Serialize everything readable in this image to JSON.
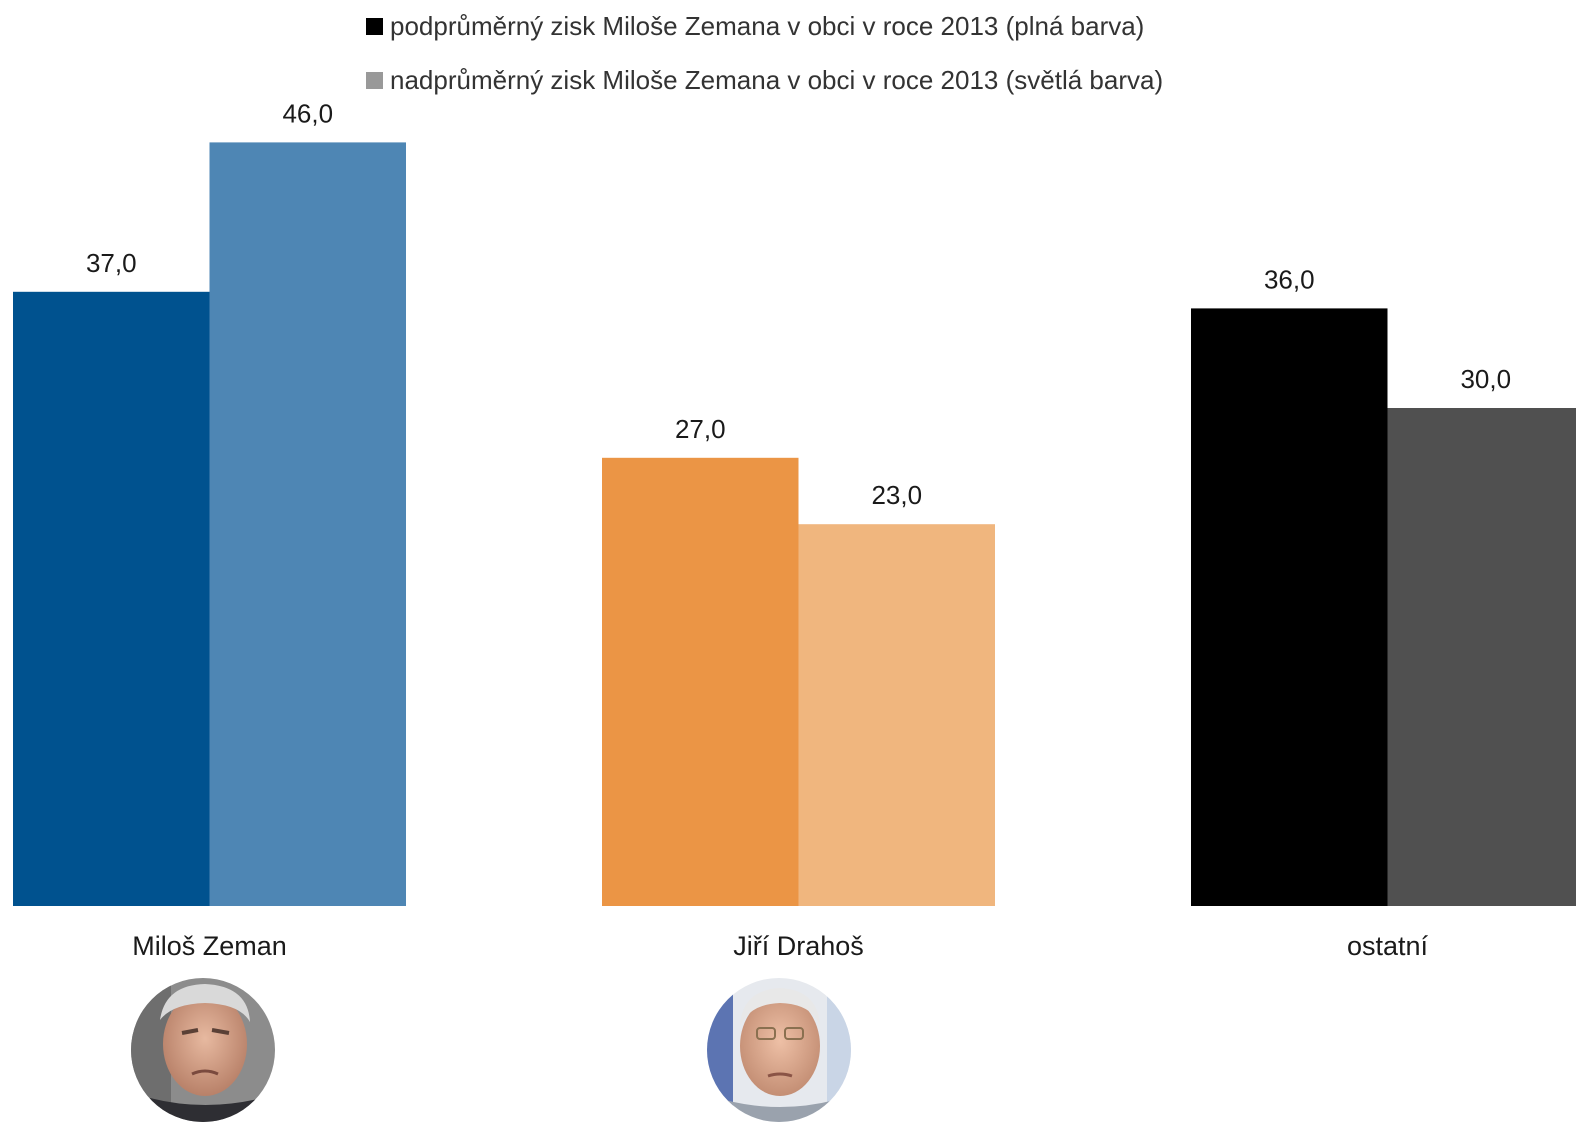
{
  "legend": {
    "items": [
      {
        "label": "podprůměrný zisk Miloše Zemana v obci v roce 2013  (plná barva)",
        "color": "#000000"
      },
      {
        "label": "nadprůměrný zisk Miloše Zemana v obci v roce 2013 (světlá barva)",
        "color": "#999999"
      }
    ]
  },
  "chart_data": {
    "type": "bar",
    "categories": [
      "Miloš Zeman",
      "Jiří Drahoš",
      "ostatní"
    ],
    "series": [
      {
        "name": "podprůměrný zisk Miloše Zemana v obci v roce 2013  (plná barva)",
        "values": [
          37.0,
          27.0,
          36.0
        ],
        "value_labels": [
          "37,0",
          "27,0",
          "36,0"
        ]
      },
      {
        "name": "nadprůměrný zisk Miloše Zemana v obci v roce 2013 (světlá barva)",
        "values": [
          46.0,
          23.0,
          30.0
        ],
        "value_labels": [
          "46,0",
          "23,0",
          "30,0"
        ]
      }
    ],
    "bar_colors": [
      [
        "#00528F",
        "#4E86B4"
      ],
      [
        "#EB9545",
        "#F0B67E"
      ],
      [
        "#000000",
        "#505050"
      ]
    ],
    "ylim": [
      0,
      50
    ],
    "grid": false,
    "legend_position": "top-center",
    "category_icons": [
      "portrait-zeman-icon",
      "portrait-drahos-icon",
      ""
    ]
  }
}
